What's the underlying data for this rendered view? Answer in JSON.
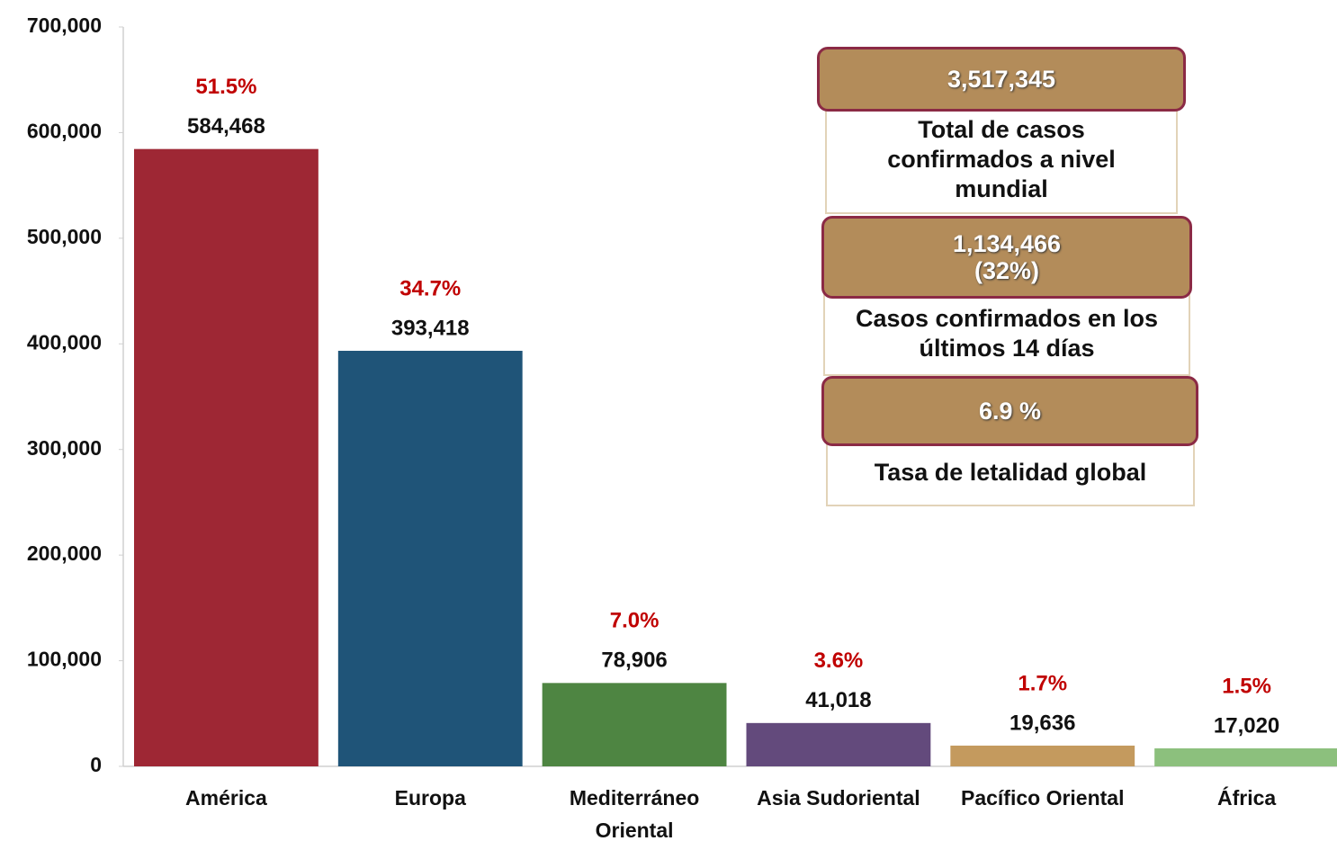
{
  "chart_data": {
    "type": "bar",
    "categories": [
      "América",
      "Europa",
      "Mediterráneo Oriental",
      "Asia Sudoriental",
      "Pacífico Oriental",
      "África"
    ],
    "values": [
      584468,
      393418,
      78906,
      41018,
      19636,
      17020
    ],
    "value_labels": [
      "584,468",
      "393,418",
      "78,906",
      "41,018",
      "19,636",
      "17,020"
    ],
    "share_labels": [
      "51.5%",
      "34.7%",
      "7.0%",
      "3.6%",
      "1.7%",
      "1.5%"
    ],
    "colors": [
      "#9e2734",
      "#1f5478",
      "#4e8542",
      "#634a7c",
      "#c49a5e",
      "#8cc07d"
    ],
    "ylim": [
      0,
      700000
    ],
    "yticks": [
      0,
      {
        "value": 100000,
        "label": "100,000"
      },
      {
        "value": 200000,
        "label": "200,000"
      },
      {
        "value": 300000,
        "label": "300,000"
      },
      {
        "value": 400000,
        "label": "400,000"
      },
      {
        "value": 500000,
        "label": "500,000"
      },
      {
        "value": 600000,
        "label": "600,000"
      },
      {
        "value": 700000,
        "label": "700,000"
      }
    ],
    "grid": false,
    "annotations": [
      {
        "value": "3,517,345",
        "label": "Total de casos confirmados a nivel mundial"
      },
      {
        "value": "1,134,466",
        "share": "(32%)",
        "label": "Casos confirmados en los últimos 14 días"
      },
      {
        "value": "6.9 %",
        "label": "Tasa de letalidad global"
      }
    ]
  }
}
